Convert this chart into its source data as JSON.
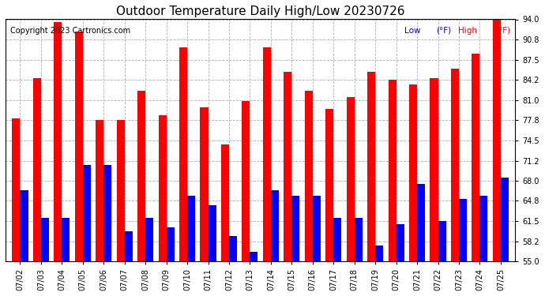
{
  "title": "Outdoor Temperature Daily High/Low 20230726",
  "copyright": "Copyright 2023 Cartronics.com",
  "legend_low": "Low",
  "legend_high": "High",
  "legend_unit": "(°F)",
  "dates": [
    "07/02",
    "07/03",
    "07/04",
    "07/05",
    "07/06",
    "07/07",
    "07/08",
    "07/09",
    "07/10",
    "07/11",
    "07/12",
    "07/13",
    "07/14",
    "07/15",
    "07/16",
    "07/17",
    "07/18",
    "07/19",
    "07/20",
    "07/21",
    "07/22",
    "07/23",
    "07/24",
    "07/25"
  ],
  "highs": [
    78.0,
    84.5,
    93.5,
    92.0,
    77.8,
    77.8,
    82.5,
    78.5,
    89.5,
    79.8,
    73.8,
    80.8,
    89.5,
    85.5,
    82.5,
    79.5,
    81.5,
    85.5,
    84.2,
    83.5,
    84.5,
    86.0,
    88.5,
    94.0
  ],
  "lows": [
    66.5,
    62.0,
    62.0,
    70.5,
    70.5,
    59.8,
    62.0,
    60.5,
    65.5,
    64.0,
    59.0,
    56.5,
    66.5,
    65.5,
    65.5,
    62.0,
    62.0,
    57.5,
    61.0,
    67.5,
    61.5,
    65.0,
    65.5,
    68.5
  ],
  "high_color": "#ff0000",
  "low_color": "#0000ff",
  "ylim": [
    55.0,
    94.0
  ],
  "yticks": [
    55.0,
    58.2,
    61.5,
    64.8,
    68.0,
    71.2,
    74.5,
    77.8,
    81.0,
    84.2,
    87.5,
    90.8,
    94.0
  ],
  "bg_color": "#ffffff",
  "grid_color": "#b0b0b0",
  "title_fontsize": 11,
  "copyright_fontsize": 7,
  "bar_width": 0.38
}
